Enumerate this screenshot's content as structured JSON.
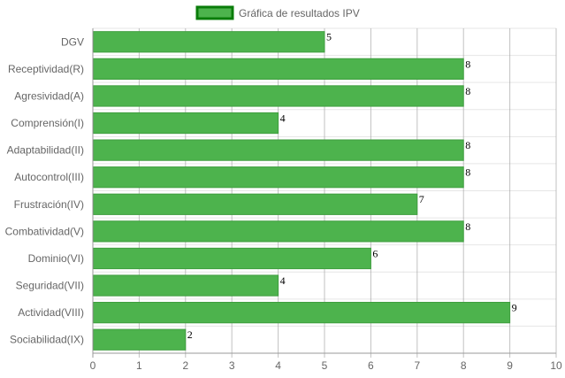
{
  "chart_data": {
    "type": "bar",
    "orientation": "horizontal",
    "categories": [
      "DGV",
      "Receptividad(R)",
      "Agresividad(A)",
      "Comprensión(I)",
      "Adaptabilidad(II)",
      "Autocontrol(III)",
      "Frustración(IV)",
      "Combatividad(V)",
      "Dominio(VI)",
      "Seguridad(VII)",
      "Actividad(VIII)",
      "Sociabilidad(IX)"
    ],
    "series": [
      {
        "name": "Gráfica de resultados IPV",
        "values": [
          5,
          8,
          8,
          4,
          8,
          8,
          7,
          8,
          6,
          4,
          9,
          2
        ]
      }
    ],
    "x_ticks": [
      "0",
      "1",
      "2",
      "3",
      "4",
      "5",
      "6",
      "7",
      "8",
      "9",
      "10"
    ],
    "xlim": [
      0,
      10
    ],
    "data_labels": true,
    "grid": true,
    "legend_position": "top",
    "colors": {
      "bar_fill": "#4db34d",
      "bar_border": "#3f9e3f",
      "legend_border": "#0a7d0a",
      "grid": "#e6e6e6",
      "grid_major": "#999999",
      "axis": "#999999",
      "text": "#666666"
    }
  }
}
